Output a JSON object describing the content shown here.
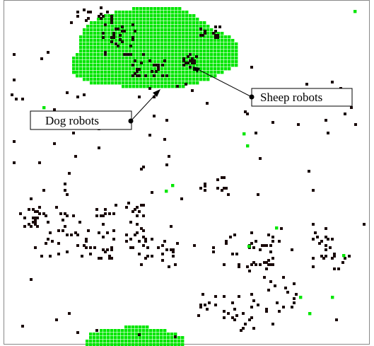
{
  "colors": {
    "dog": "#00e600",
    "sheep": "#1a0a0a",
    "frame": "#888888",
    "background": "#ffffff"
  },
  "labels": {
    "sheep": "Sheep robots",
    "dog": "Dog robots"
  }
}
